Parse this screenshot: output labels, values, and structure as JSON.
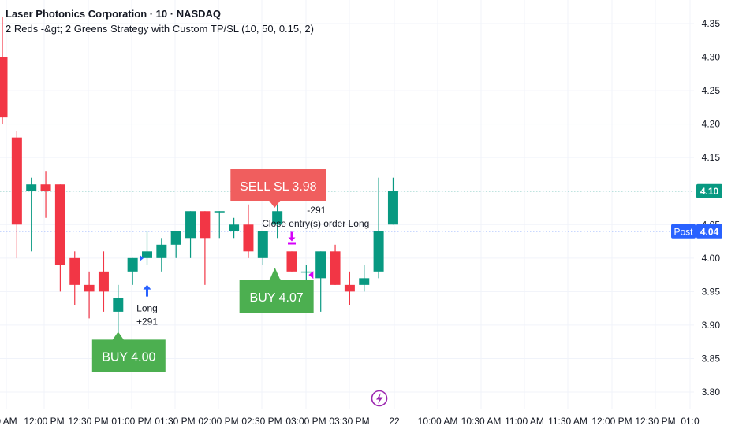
{
  "header": {
    "title": "Laser Photonics Corporation · 10 · NASDAQ",
    "strategy": "2 Reds -&gt; 2 Greens Strategy with Custom TP/SL (10, 50, 0.15, 2)"
  },
  "colors": {
    "up": "#089981",
    "down": "#f23645",
    "buy_label": "#4caf50",
    "sell_label": "#f05e5e",
    "price_badge": "#089981",
    "post_badge": "#2962ff",
    "entry_arrow": "#2962ff",
    "exit_marker": "#d500f9",
    "dotted_price_line": "#089981",
    "dotted_post_line": "#2962ff"
  },
  "chart_data": {
    "type": "candlestick",
    "y_axis": {
      "range": [
        3.775,
        4.39
      ],
      "ticks": [
        "4.35",
        "4.30",
        "4.25",
        "4.20",
        "4.15",
        "4.10",
        "4.05",
        "4.00",
        "3.95",
        "3.90",
        "3.85",
        "3.80"
      ]
    },
    "x_axis": {
      "ticks": [
        "0 AM",
        "12:00 PM",
        "12:30 PM",
        "01:00 PM",
        "01:30 PM",
        "02:00 PM",
        "02:30 PM",
        "03:00 PM",
        "03:30 PM",
        "22",
        "10:00 AM",
        "10:30 AM",
        "11:00 AM",
        "11:30 AM",
        "12:00 PM",
        "12:30 PM",
        "01:0"
      ]
    },
    "candles": [
      {
        "o": 4.3,
        "h": 4.36,
        "l": 4.2,
        "c": 4.21
      },
      {
        "o": 4.18,
        "h": 4.19,
        "l": 4.0,
        "c": 4.05
      },
      {
        "o": 4.1,
        "h": 4.12,
        "l": 4.01,
        "c": 4.11
      },
      {
        "o": 4.11,
        "h": 4.13,
        "l": 4.06,
        "c": 4.1
      },
      {
        "o": 4.11,
        "h": 4.11,
        "l": 3.95,
        "c": 3.99
      },
      {
        "o": 4.0,
        "h": 4.01,
        "l": 3.93,
        "c": 3.96
      },
      {
        "o": 3.96,
        "h": 3.98,
        "l": 3.91,
        "c": 3.95
      },
      {
        "o": 3.98,
        "h": 4.01,
        "l": 3.92,
        "c": 3.95
      },
      {
        "o": 3.92,
        "h": 3.96,
        "l": 3.85,
        "c": 3.94
      },
      {
        "o": 3.98,
        "h": 4.0,
        "l": 3.96,
        "c": 4.0
      },
      {
        "o": 4.0,
        "h": 4.04,
        "l": 3.99,
        "c": 4.01
      },
      {
        "o": 4.0,
        "h": 4.03,
        "l": 3.98,
        "c": 4.02
      },
      {
        "o": 4.02,
        "h": 4.04,
        "l": 4.0,
        "c": 4.04
      },
      {
        "o": 4.03,
        "h": 4.07,
        "l": 4.0,
        "c": 4.07
      },
      {
        "o": 4.07,
        "h": 4.07,
        "l": 3.96,
        "c": 4.03
      },
      {
        "o": 4.07,
        "h": 4.07,
        "l": 4.03,
        "c": 4.07
      },
      {
        "o": 4.04,
        "h": 4.06,
        "l": 4.03,
        "c": 4.05
      },
      {
        "o": 4.05,
        "h": 4.08,
        "l": 4.0,
        "c": 4.01
      },
      {
        "o": 4.0,
        "h": 4.04,
        "l": 3.99,
        "c": 4.04
      },
      {
        "o": 4.05,
        "h": 4.08,
        "l": 4.03,
        "c": 4.07
      },
      {
        "o": 4.01,
        "h": 4.01,
        "l": 3.98,
        "c": 3.98
      },
      {
        "o": 3.98,
        "h": 3.99,
        "l": 3.96,
        "c": 3.98
      },
      {
        "o": 3.97,
        "h": 4.01,
        "l": 3.92,
        "c": 4.01
      },
      {
        "o": 4.01,
        "h": 4.02,
        "l": 3.96,
        "c": 3.96
      },
      {
        "o": 3.96,
        "h": 3.98,
        "l": 3.93,
        "c": 3.95
      },
      {
        "o": 3.96,
        "h": 3.99,
        "l": 3.95,
        "c": 3.97
      },
      {
        "o": 3.98,
        "h": 4.12,
        "l": 3.97,
        "c": 4.04
      },
      {
        "o": 4.05,
        "h": 4.12,
        "l": 4.05,
        "c": 4.1
      }
    ],
    "price_lines": [
      {
        "value": 4.1,
        "label": "4.10"
      },
      {
        "value": 4.04,
        "label": "4.04",
        "tag": "Post"
      }
    ],
    "annotations": {
      "buy1": {
        "text": "BUY 4.00",
        "candle": 8
      },
      "long_entry": {
        "text": "Long",
        "pnl": "+291",
        "candle": 10
      },
      "sell_sl": {
        "text": "SELL SL 3.98",
        "candle": 18
      },
      "close_exit": {
        "pnl": "-291",
        "text": "Close entry(s) order Long",
        "candle": 18
      },
      "buy2": {
        "text": "BUY 4.07",
        "candle": 19
      }
    }
  }
}
